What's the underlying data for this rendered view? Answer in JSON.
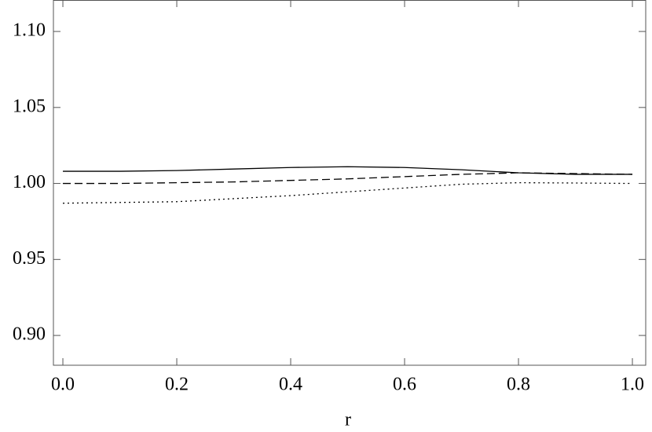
{
  "chart_data": {
    "type": "line",
    "xlabel": "r",
    "x": [
      0,
      0.1,
      0.2,
      0.3,
      0.4,
      0.5,
      0.6,
      0.7,
      0.8,
      0.9,
      1.0
    ],
    "series": [
      {
        "color": "#000000",
        "dash": "solid",
        "values": [
          1.008,
          1.008,
          1.0085,
          1.0095,
          1.0105,
          1.011,
          1.0105,
          1.009,
          1.007,
          1.006,
          1.006
        ]
      },
      {
        "color": "#000000",
        "dash": "dashed",
        "values": [
          1.0,
          1.0,
          1.0005,
          1.001,
          1.002,
          1.003,
          1.0045,
          1.006,
          1.007,
          1.0065,
          1.006
        ]
      },
      {
        "color": "#000000",
        "dash": "dotted",
        "values": [
          0.987,
          0.9875,
          0.988,
          0.99,
          0.992,
          0.9945,
          0.997,
          0.9995,
          1.0005,
          1.0003,
          1.0
        ]
      }
    ],
    "xlim": [
      -0.0166,
      1.0234
    ],
    "ylim": [
      0.8804,
      1.1207
    ],
    "xticks": [
      {
        "value": 0,
        "label": "0.0"
      },
      0.2,
      0.4,
      0.6,
      0.8,
      {
        "value": 1,
        "label": "1.0"
      }
    ],
    "yticks": [
      {
        "value": 0.9,
        "label": "0.90"
      },
      0.95,
      {
        "value": 1,
        "label": "1.00"
      },
      1.05,
      {
        "value": 1.1,
        "label": "1.10"
      }
    ]
  }
}
